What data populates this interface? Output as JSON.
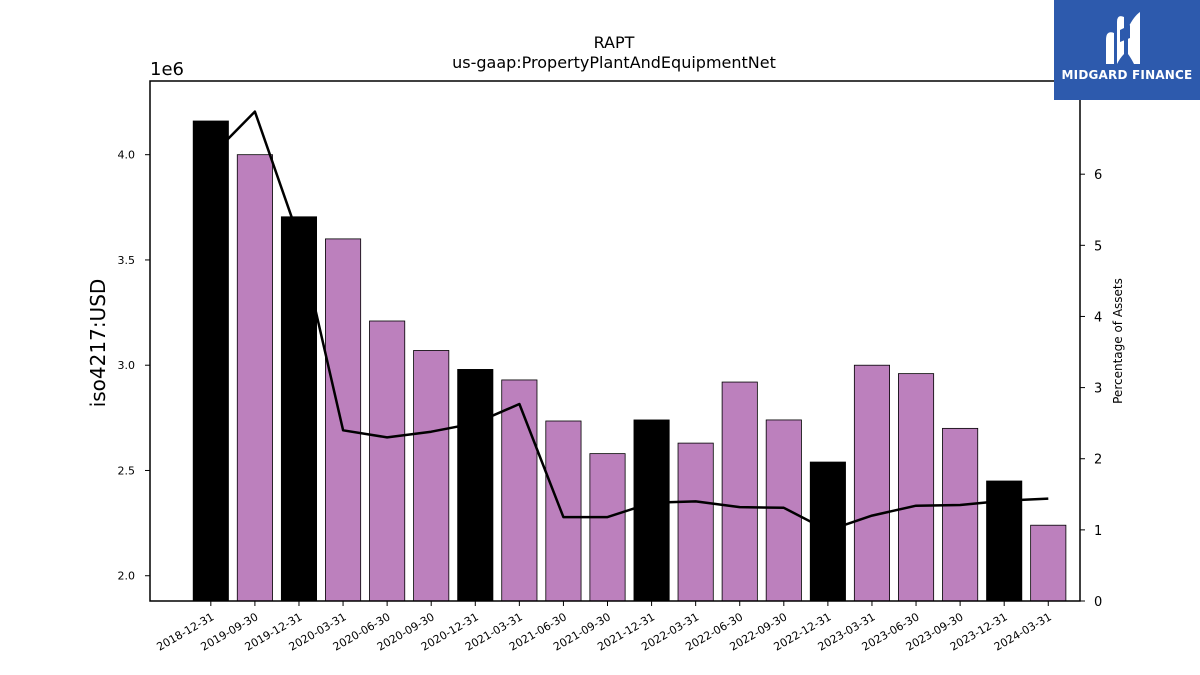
{
  "chart_data": {
    "type": "bar",
    "title": "RAPT",
    "subtitle": "us-gaap:PropertyPlantAndEquipmentNet",
    "ylabel": "iso4217:USD",
    "y_offset_label": "1e6",
    "y2label": "Percentage of Assets",
    "categories": [
      "2018-12-31",
      "2019-09-30",
      "2019-12-31",
      "2020-03-31",
      "2020-06-30",
      "2020-09-30",
      "2020-12-31",
      "2021-03-31",
      "2021-06-30",
      "2021-09-30",
      "2021-12-31",
      "2022-03-31",
      "2022-06-30",
      "2022-09-30",
      "2022-12-31",
      "2023-03-31",
      "2023-06-30",
      "2023-09-30",
      "2023-12-31",
      "2024-03-31"
    ],
    "series": [
      {
        "type": "bar",
        "axis": "left",
        "values": [
          4160000,
          4000000,
          3705000,
          3600000,
          3210000,
          3070000,
          2980000,
          2930000,
          2735000,
          2580000,
          2740000,
          2630000,
          2920000,
          2740000,
          2540000,
          3000000,
          2960000,
          2700000,
          2450000,
          2240000
        ],
        "fiscal_year_end": [
          true,
          false,
          true,
          false,
          false,
          false,
          true,
          false,
          false,
          false,
          true,
          false,
          false,
          false,
          true,
          false,
          false,
          false,
          true,
          false
        ]
      },
      {
        "type": "line",
        "axis": "right",
        "values": [
          6.25,
          6.88,
          5.1,
          2.4,
          2.3,
          2.38,
          2.5,
          2.77,
          1.18,
          1.18,
          1.38,
          1.4,
          1.32,
          1.31,
          0.99,
          1.2,
          1.34,
          1.35,
          1.41,
          1.44
        ]
      }
    ],
    "ylim": [
      1880000,
      4350000
    ],
    "y2lim": [
      0,
      7.31
    ],
    "yticks": [
      2000000,
      2500000,
      3000000,
      3500000,
      4000000
    ],
    "ytick_labels": [
      "2.0",
      "2.5",
      "3.0",
      "3.5",
      "4.0"
    ],
    "y2ticks": [
      0,
      1,
      2,
      3,
      4,
      5,
      6
    ],
    "y2tick_labels": [
      "0",
      "1",
      "2",
      "3",
      "4",
      "5",
      "6"
    ],
    "colors": {
      "fiscal_bar": "#000000",
      "quarter_bar": "#bc80bd",
      "line": "#000000"
    },
    "grid": false,
    "legend": "none"
  },
  "logo": {
    "text": "MIDGARD FINANCE",
    "background": "#2d5aad"
  }
}
